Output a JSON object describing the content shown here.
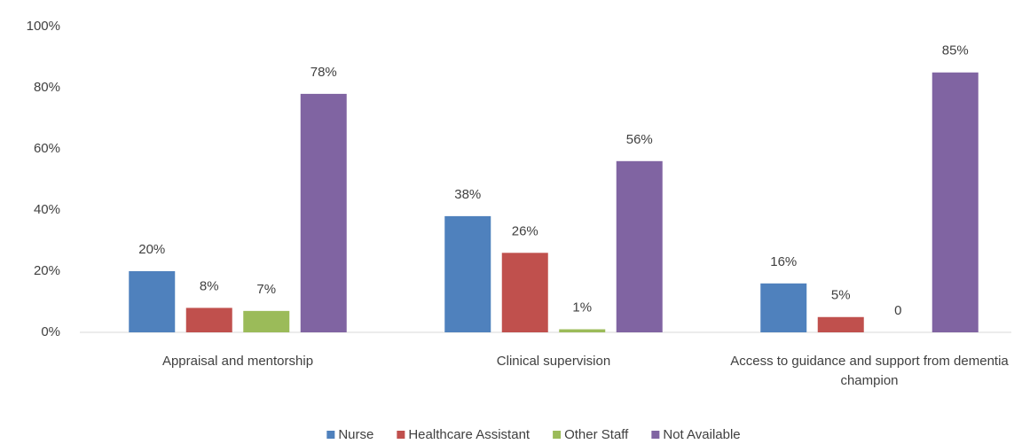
{
  "chart_data": {
    "type": "bar",
    "categories": [
      "Appraisal and mentorship",
      "Clinical supervision",
      "Access to guidance and support from dementia champion"
    ],
    "series": [
      {
        "name": "Nurse",
        "color": "#4f81bd",
        "values": [
          20,
          38,
          16
        ],
        "value_labels": [
          "20%",
          "38%",
          "16%"
        ]
      },
      {
        "name": "Healthcare Assistant",
        "color": "#c0504d",
        "values": [
          8,
          26,
          5
        ],
        "value_labels": [
          "8%",
          "26%",
          "5%"
        ]
      },
      {
        "name": "Other Staff",
        "color": "#9bbb59",
        "values": [
          7,
          1,
          0
        ],
        "value_labels": [
          "7%",
          "1%",
          "0"
        ]
      },
      {
        "name": "Not Available",
        "color": "#8064a2",
        "values": [
          78,
          56,
          85
        ],
        "value_labels": [
          "78%",
          "56%",
          "85%"
        ]
      }
    ],
    "ylim": [
      0,
      100
    ],
    "yticks": [
      {
        "value": 0,
        "label": "0%"
      },
      {
        "value": 20,
        "label": "20%"
      },
      {
        "value": 40,
        "label": "40%"
      },
      {
        "value": 60,
        "label": "60%"
      },
      {
        "value": 80,
        "label": "80%"
      },
      {
        "value": 100,
        "label": "100%"
      }
    ],
    "grid": false,
    "legend": "bottom"
  }
}
